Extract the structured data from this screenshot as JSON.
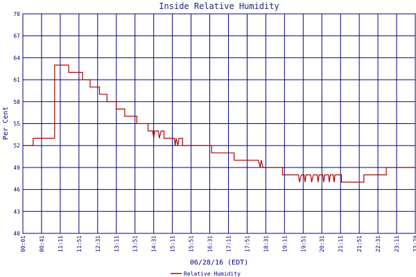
{
  "chart_data": {
    "type": "line",
    "title": "Inside Relative Humidity",
    "xlabel": "06/28/16 (EDT)",
    "ylabel": "Per Cent",
    "ylim": [
      40,
      70
    ],
    "yticks": [
      "70",
      "67",
      "64",
      "61",
      "58",
      "55",
      "52",
      "49",
      "46",
      "43",
      "40"
    ],
    "xticks": [
      "00:01",
      "00:41",
      "11:11",
      "11:51",
      "12:31",
      "13:11",
      "13:51",
      "14:31",
      "15:11",
      "15:51",
      "16:31",
      "17:11",
      "17:51",
      "18:31",
      "19:11",
      "19:51",
      "20:31",
      "21:11",
      "21:51",
      "22:31",
      "23:11",
      "23:29"
    ],
    "grid": true,
    "legend": "bottom",
    "colors": {
      "line": "#aa0000",
      "grid": "#000080",
      "axis": "#000080",
      "title": "#1a237e"
    },
    "series": [
      {
        "name": "Relative Humidity",
        "points": [
          [
            0,
            52
          ],
          [
            0.55,
            52
          ],
          [
            0.55,
            53
          ],
          [
            1.7,
            53
          ],
          [
            1.7,
            63
          ],
          [
            2.45,
            63
          ],
          [
            2.45,
            62
          ],
          [
            3.2,
            62
          ],
          [
            3.2,
            61
          ],
          [
            3.6,
            61
          ],
          [
            3.6,
            60
          ],
          [
            4.1,
            60
          ],
          [
            4.1,
            59
          ],
          [
            4.5,
            59
          ],
          [
            4.5,
            58
          ],
          [
            5.0,
            58
          ],
          [
            5.0,
            57
          ],
          [
            5.45,
            57
          ],
          [
            5.45,
            56
          ],
          [
            6.1,
            56
          ],
          [
            6.1,
            55
          ],
          [
            6.7,
            55
          ],
          [
            6.7,
            54
          ],
          [
            6.95,
            54
          ],
          [
            7.0,
            53
          ],
          [
            7.05,
            54
          ],
          [
            7.25,
            54
          ],
          [
            7.3,
            53
          ],
          [
            7.4,
            54
          ],
          [
            7.55,
            54
          ],
          [
            7.55,
            53
          ],
          [
            8.1,
            53
          ],
          [
            8.15,
            52
          ],
          [
            8.2,
            53
          ],
          [
            8.3,
            52
          ],
          [
            8.35,
            53
          ],
          [
            8.55,
            53
          ],
          [
            8.55,
            52
          ],
          [
            9.0,
            52
          ],
          [
            9.0,
            52
          ],
          [
            10.1,
            52
          ],
          [
            10.1,
            51
          ],
          [
            11.3,
            51
          ],
          [
            11.3,
            50
          ],
          [
            12.6,
            50
          ],
          [
            12.7,
            49
          ],
          [
            12.75,
            50
          ],
          [
            12.85,
            49
          ],
          [
            13.9,
            49
          ],
          [
            13.9,
            48
          ],
          [
            14.75,
            48
          ],
          [
            14.8,
            47
          ],
          [
            14.9,
            48
          ],
          [
            15.05,
            48
          ],
          [
            15.1,
            47
          ],
          [
            15.15,
            48
          ],
          [
            15.4,
            48
          ],
          [
            15.45,
            47
          ],
          [
            15.55,
            48
          ],
          [
            15.75,
            48
          ],
          [
            15.8,
            47
          ],
          [
            15.85,
            48
          ],
          [
            16.05,
            48
          ],
          [
            16.1,
            47
          ],
          [
            16.15,
            48
          ],
          [
            16.35,
            48
          ],
          [
            16.4,
            47
          ],
          [
            16.45,
            48
          ],
          [
            16.6,
            48
          ],
          [
            16.65,
            47
          ],
          [
            16.7,
            48
          ],
          [
            17.05,
            48
          ],
          [
            17.05,
            47
          ],
          [
            18.25,
            47
          ],
          [
            18.25,
            48
          ],
          [
            19.45,
            48
          ],
          [
            19.45,
            49
          ],
          [
            21,
            49
          ]
        ]
      }
    ]
  }
}
